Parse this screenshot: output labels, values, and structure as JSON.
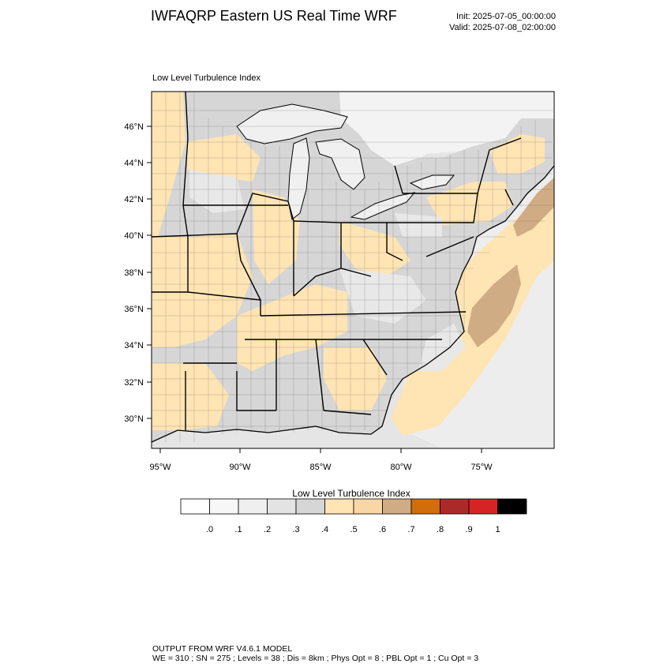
{
  "header": {
    "title": "IWFAQRP Eastern US Real Time WRF",
    "init": "Init: 2025-07-05_00:00:00",
    "valid": "Valid: 2025-07-08_02:00:00"
  },
  "map": {
    "label": "Low Level Turbulence Index",
    "lat_ticks": [
      "46°N",
      "44°N",
      "42°N",
      "40°N",
      "38°N",
      "36°N",
      "34°N",
      "32°N",
      "30°N"
    ],
    "lon_ticks": [
      "95°W",
      "90°W",
      "85°W",
      "80°W",
      "75°W"
    ]
  },
  "colorbar": {
    "title": "Low Level Turbulence Index",
    "colors": [
      "#ffffff",
      "#f7f7f7",
      "#efefef",
      "#e3e3e3",
      "#d6d6d6",
      "#ffe4b4",
      "#f8d7a6",
      "#d0ac84",
      "#d06d0d",
      "#aa2a2a",
      "#d62424",
      "#000000"
    ],
    "labels": [
      ".0",
      ".1",
      ".2",
      ".3",
      ".4",
      ".5",
      ".6",
      ".7",
      ".8",
      ".9",
      "1"
    ]
  },
  "footer": {
    "line1": "OUTPUT FROM WRF V4.6.1 MODEL",
    "line2": "WE = 310 ; SN = 275 ; Levels = 38 ; Dis = 8km ; Phys Opt = 8 ; PBL Opt = 1 ; Cu Opt = 3"
  }
}
